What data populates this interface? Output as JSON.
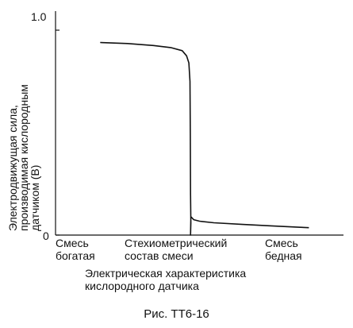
{
  "chart_data": {
    "type": "line",
    "title": "",
    "ylabel_lines": [
      "Электродвижущая сила,",
      "производимая кислородным",
      "датчиком (В)"
    ],
    "xlabel_lines": [
      "Электрическая характеристика",
      "кислородного датчика"
    ],
    "y_ticks": [
      {
        "value": 0,
        "label": "0"
      },
      {
        "value": 1.0,
        "label": "1.0"
      }
    ],
    "ylim": [
      0,
      1.0
    ],
    "x_categories": [
      {
        "position": 0.05,
        "label_lines": [
          "Смесь",
          "богатая"
        ]
      },
      {
        "position": 0.5,
        "label_lines": [
          "Стехиометрический",
          "состав смеси"
        ]
      },
      {
        "position": 0.92,
        "label_lines": [
          "Смесь",
          "бедная"
        ]
      }
    ],
    "xlim": [
      0,
      1
    ],
    "grid": false,
    "series": [
      {
        "points": [
          [
            0.155,
            0.94
          ],
          [
            0.25,
            0.935
          ],
          [
            0.34,
            0.925
          ],
          [
            0.4,
            0.915
          ],
          [
            0.44,
            0.9
          ],
          [
            0.455,
            0.875
          ],
          [
            0.463,
            0.84
          ],
          [
            0.467,
            0.75
          ],
          [
            0.468,
            0.5
          ],
          [
            0.469,
            0.2
          ],
          [
            0.47,
            0.06
          ],
          [
            0.469,
            0.0
          ],
          [
            0.47,
            0.09
          ],
          [
            0.48,
            0.075
          ],
          [
            0.5,
            0.068
          ],
          [
            0.55,
            0.06
          ],
          [
            0.65,
            0.052
          ],
          [
            0.75,
            0.045
          ],
          [
            0.85,
            0.038
          ],
          [
            0.88,
            0.036
          ]
        ]
      }
    ]
  },
  "caption": "Рис. ТТ6-16"
}
